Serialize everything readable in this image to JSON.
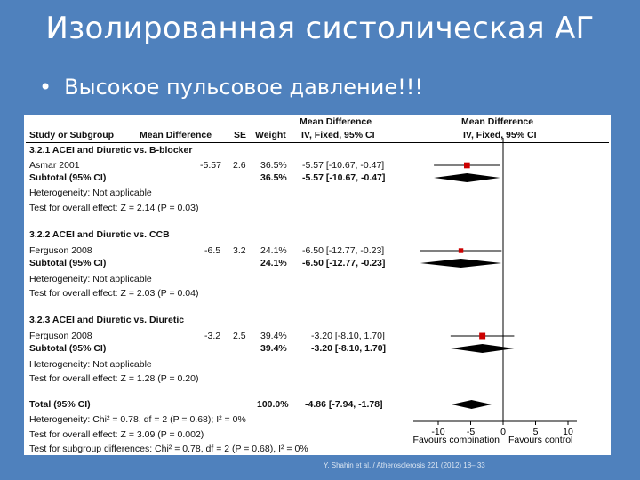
{
  "slide": {
    "title": "Изолированная систолическая АГ",
    "bullet_symbol": "•",
    "bullet_text": "Высокое пульсовое давление!!!",
    "citation": "Y. Shahin et al. / Atherosclerosis 221 (2012) 18– 33"
  },
  "forest": {
    "headers": {
      "study": "Study or Subgroup",
      "md": "Mean Difference",
      "se": "SE",
      "weight": "Weight",
      "ci_top": "Mean Difference",
      "ci_bottom": "IV, Fixed, 95% CI",
      "plot_top": "Mean Difference",
      "plot_bottom": "IV, Fixed, 95% CI"
    },
    "groups": [
      {
        "title": "3.2.1 ACEI and Diuretic vs. B-blocker",
        "study": {
          "name": "Asmar 2001",
          "md": "-5.57",
          "se": "2.6",
          "weight": "36.5%",
          "ci": "-5.57 [-10.67, -0.47]"
        },
        "subtotal": {
          "label": "Subtotal (95% CI)",
          "weight": "36.5%",
          "ci": "-5.57 [-10.67, -0.47]"
        },
        "heterogeneity": "Heterogeneity: Not applicable",
        "test": "Test for overall effect: Z = 2.14 (P = 0.03)"
      },
      {
        "title": "3.2.2 ACEI and Diuretic vs. CCB",
        "study": {
          "name": "Ferguson 2008",
          "md": "-6.5",
          "se": "3.2",
          "weight": "24.1%",
          "ci": "-6.50 [-12.77, -0.23]"
        },
        "subtotal": {
          "label": "Subtotal (95% CI)",
          "weight": "24.1%",
          "ci": "-6.50 [-12.77, -0.23]"
        },
        "heterogeneity": "Heterogeneity: Not applicable",
        "test": "Test for overall effect: Z = 2.03 (P = 0.04)"
      },
      {
        "title": "3.2.3 ACEI and Diuretic vs. Diuretic",
        "study": {
          "name": "Ferguson 2008",
          "md": "-3.2",
          "se": "2.5",
          "weight": "39.4%",
          "ci": "-3.20 [-8.10, 1.70]"
        },
        "subtotal": {
          "label": "Subtotal (95% CI)",
          "weight": "39.4%",
          "ci": "-3.20 [-8.10, 1.70]"
        },
        "heterogeneity": "Heterogeneity: Not applicable",
        "test": "Test for overall effect: Z = 1.28 (P = 0.20)"
      }
    ],
    "total": {
      "label": "Total (95% CI)",
      "weight": "100.0%",
      "ci": "-4.86 [-7.94, -1.78]",
      "heterogeneity": "Heterogeneity: Chi² = 0.78, df = 2 (P = 0.68); I² = 0%",
      "test": "Test for overall effect: Z = 3.09 (P = 0.002)",
      "subgroup_test": "Test for subgroup differences: Chi² = 0.78, df = 2 (P = 0.68), I² = 0%"
    },
    "axis": {
      "ticks": [
        -10,
        -5,
        0,
        5,
        10
      ],
      "tick_labels": [
        "-10",
        "-5",
        "0",
        "5",
        "10"
      ],
      "xlim": [
        -10,
        10
      ],
      "left_label": "Favours combination",
      "right_label": "Favours control"
    },
    "estimates": [
      {
        "kind": "study",
        "md": -5.57,
        "low": -10.67,
        "high": -0.47,
        "weight": 36.5
      },
      {
        "kind": "diamond",
        "md": -5.57,
        "low": -10.67,
        "high": -0.47
      },
      {
        "kind": "study",
        "md": -6.5,
        "low": -12.77,
        "high": -0.23,
        "weight": 24.1
      },
      {
        "kind": "diamond",
        "md": -6.5,
        "low": -12.77,
        "high": -0.23
      },
      {
        "kind": "study",
        "md": -3.2,
        "low": -8.1,
        "high": 1.7,
        "weight": 39.4
      },
      {
        "kind": "diamond",
        "md": -3.2,
        "low": -8.1,
        "high": 1.7
      },
      {
        "kind": "diamond",
        "md": -4.86,
        "low": -7.94,
        "high": -1.78
      }
    ],
    "colors": {
      "marker": "#cc0000",
      "diamond": "#000000"
    }
  }
}
